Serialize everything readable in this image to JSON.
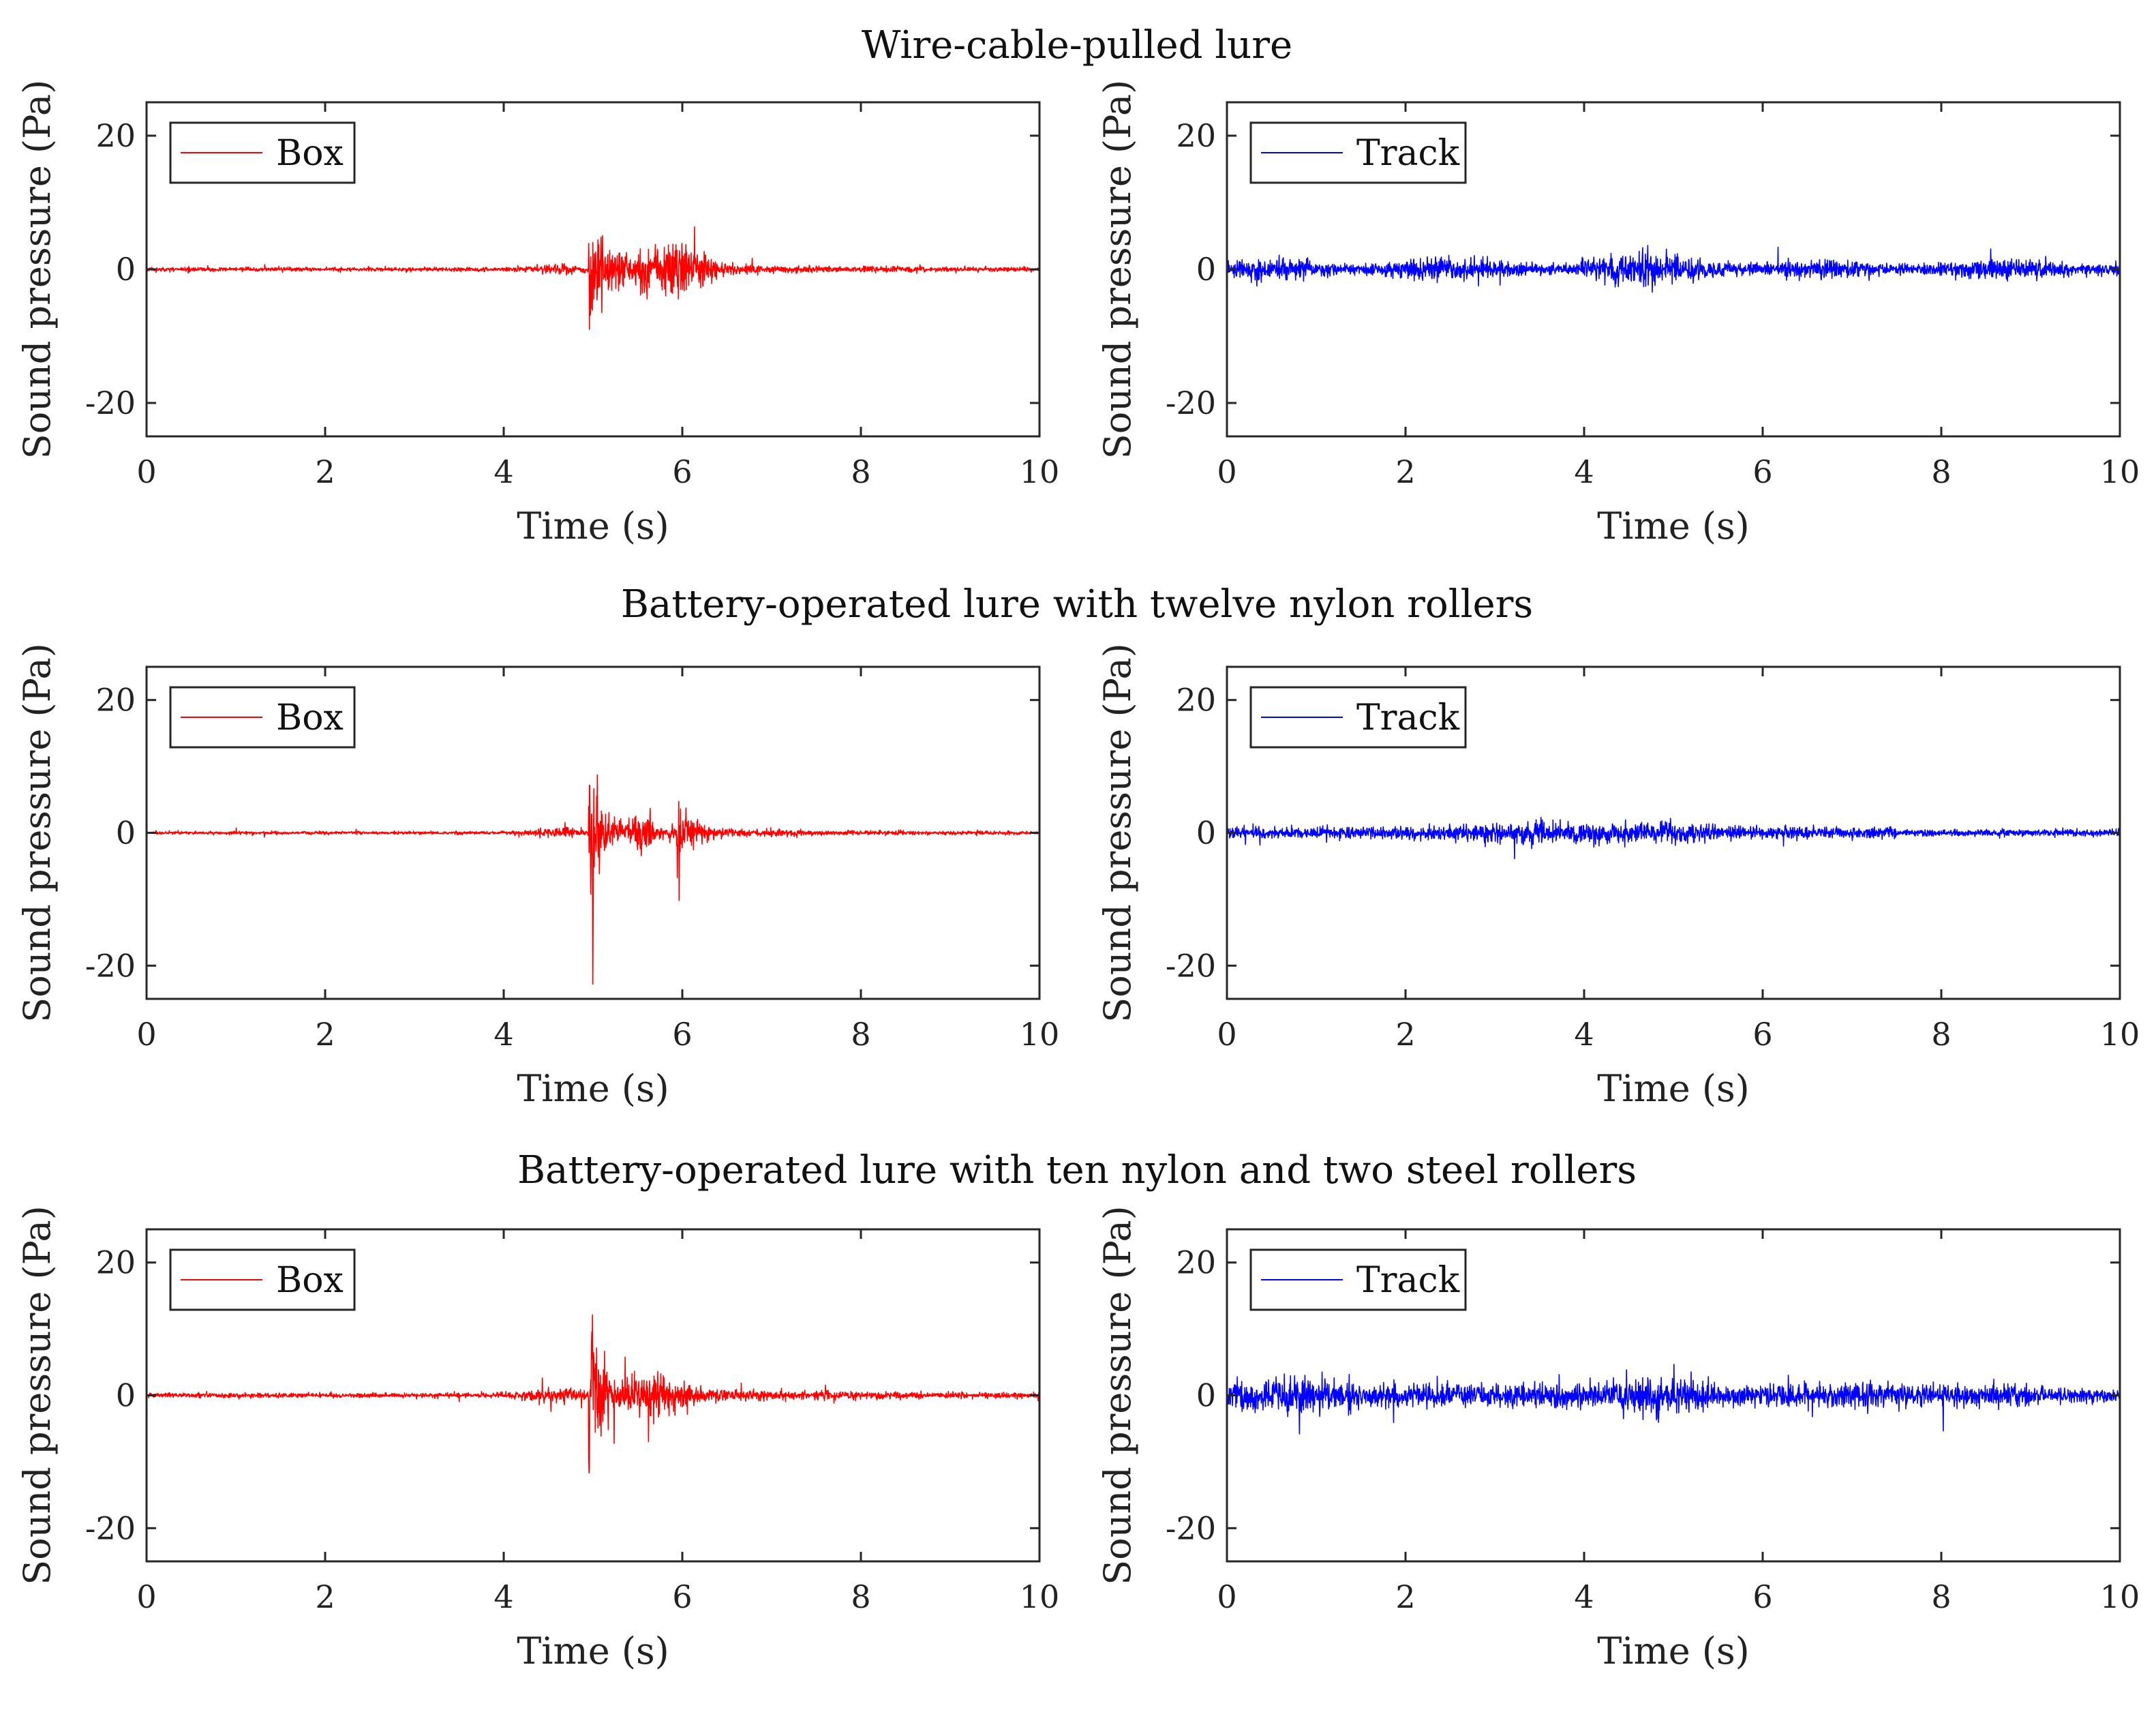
{
  "chart_data": [
    {
      "type": "line",
      "row_title": "Wire-cable-pulled lure",
      "series": [
        {
          "name": "Box",
          "color": "#ff0000",
          "profile": "box_a",
          "seed": 11
        }
      ],
      "xlabel": "Time (s)",
      "ylabel": "Sound pressure (Pa)",
      "xlim": [
        0,
        10
      ],
      "ylim": [
        -25,
        25
      ],
      "xticks": [
        "0",
        "2",
        "4",
        "6",
        "8",
        "10"
      ],
      "xtick_values": [
        0,
        2,
        4,
        6,
        8,
        10
      ],
      "yticks": [
        "20",
        "0",
        "-20"
      ],
      "ytick_values": [
        20,
        0,
        -20
      ],
      "legend_position": "top-left",
      "grid": false
    },
    {
      "type": "line",
      "row_title": "",
      "series": [
        {
          "name": "Track",
          "color": "#0000ff",
          "profile": "track_a",
          "seed": 23
        }
      ],
      "xlabel": "Time (s)",
      "ylabel": "Sound pressure (Pa)",
      "xlim": [
        0,
        10
      ],
      "ylim": [
        -25,
        25
      ],
      "xticks": [
        "0",
        "2",
        "4",
        "6",
        "8",
        "10"
      ],
      "xtick_values": [
        0,
        2,
        4,
        6,
        8,
        10
      ],
      "yticks": [
        "20",
        "0",
        "-20"
      ],
      "ytick_values": [
        20,
        0,
        -20
      ],
      "legend_position": "top-left",
      "grid": false
    },
    {
      "type": "line",
      "row_title": "Battery-operated lure with twelve nylon rollers",
      "series": [
        {
          "name": "Box",
          "color": "#ff0000",
          "profile": "box_b",
          "seed": 37
        }
      ],
      "xlabel": "Time (s)",
      "ylabel": "Sound pressure (Pa)",
      "xlim": [
        0,
        10
      ],
      "ylim": [
        -25,
        25
      ],
      "xticks": [
        "0",
        "2",
        "4",
        "6",
        "8",
        "10"
      ],
      "xtick_values": [
        0,
        2,
        4,
        6,
        8,
        10
      ],
      "yticks": [
        "20",
        "0",
        "-20"
      ],
      "ytick_values": [
        20,
        0,
        -20
      ],
      "legend_position": "top-left",
      "grid": false
    },
    {
      "type": "line",
      "row_title": "",
      "series": [
        {
          "name": "Track",
          "color": "#0000ff",
          "profile": "track_b",
          "seed": 41
        }
      ],
      "xlabel": "Time (s)",
      "ylabel": "Sound pressure (Pa)",
      "xlim": [
        0,
        10
      ],
      "ylim": [
        -25,
        25
      ],
      "xticks": [
        "0",
        "2",
        "4",
        "6",
        "8",
        "10"
      ],
      "xtick_values": [
        0,
        2,
        4,
        6,
        8,
        10
      ],
      "yticks": [
        "20",
        "0",
        "-20"
      ],
      "ytick_values": [
        20,
        0,
        -20
      ],
      "legend_position": "top-left",
      "grid": false
    },
    {
      "type": "line",
      "row_title": "Battery-operated lure with ten nylon and two steel rollers",
      "series": [
        {
          "name": "Box",
          "color": "#ff0000",
          "profile": "box_c",
          "seed": 53
        }
      ],
      "xlabel": "Time (s)",
      "ylabel": "Sound pressure (Pa)",
      "xlim": [
        0,
        10
      ],
      "ylim": [
        -25,
        25
      ],
      "xticks": [
        "0",
        "2",
        "4",
        "6",
        "8",
        "10"
      ],
      "xtick_values": [
        0,
        2,
        4,
        6,
        8,
        10
      ],
      "yticks": [
        "20",
        "0",
        "-20"
      ],
      "ytick_values": [
        20,
        0,
        -20
      ],
      "legend_position": "top-left",
      "grid": false
    },
    {
      "type": "line",
      "row_title": "",
      "series": [
        {
          "name": "Track",
          "color": "#0000ff",
          "profile": "track_c",
          "seed": 67
        }
      ],
      "xlabel": "Time (s)",
      "ylabel": "Sound pressure (Pa)",
      "xlim": [
        0,
        10
      ],
      "ylim": [
        -25,
        25
      ],
      "xticks": [
        "0",
        "2",
        "4",
        "6",
        "8",
        "10"
      ],
      "xtick_values": [
        0,
        2,
        4,
        6,
        8,
        10
      ],
      "yticks": [
        "20",
        "0",
        "-20"
      ],
      "ytick_values": [
        20,
        0,
        -20
      ],
      "legend_position": "top-left",
      "grid": false
    }
  ]
}
